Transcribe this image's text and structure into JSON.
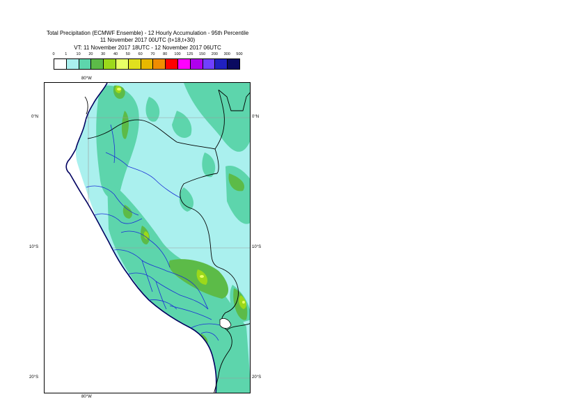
{
  "title": {
    "line1": "Total Precipitation (ECMWF Ensemble) - 12 Hourly Accumulation - 95th Percentile",
    "line2": "11 November 2017 00UTC (t+18,t+30)",
    "line3": "VT: 11 November 2017 18UTC - 12 November 2017 06UTC"
  },
  "legend": {
    "labels": [
      "0",
      "1",
      "10",
      "20",
      "30",
      "40",
      "50",
      "60",
      "70",
      "80",
      "100",
      "125",
      "150",
      "200",
      "300",
      "500"
    ],
    "colors": [
      "#ffffff",
      "#aaf0ee",
      "#5dd5ac",
      "#5cbb48",
      "#9cd81a",
      "#e8ff66",
      "#e0e01e",
      "#e8b800",
      "#f08c00",
      "#ff0000",
      "#ff00ff",
      "#b000ee",
      "#7040ff",
      "#2020c0",
      "#0a0a60"
    ]
  },
  "axes": {
    "lon_top": "80°W",
    "lon_bottom": "80°W",
    "lat_0_left": "0°N",
    "lat_0_right": "0°N",
    "lat_10_left": "10°S",
    "lat_10_right": "10°S",
    "lat_20_left": "20°S",
    "lat_20_right": "20°S"
  }
}
